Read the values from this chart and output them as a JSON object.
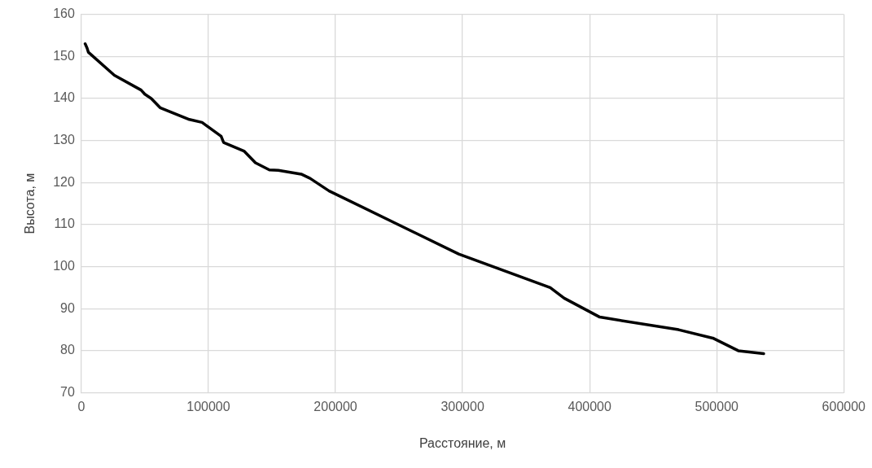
{
  "chart_data": {
    "type": "line",
    "xlabel": "Расстояние, м",
    "ylabel": "Высота, м",
    "x": [
      3000,
      4500,
      5500,
      26000,
      47000,
      50000,
      55000,
      62000,
      85000,
      95000,
      110000,
      112000,
      128000,
      137000,
      148000,
      155000,
      173000,
      180000,
      195000,
      297000,
      369000,
      380000,
      408000,
      470000,
      497000,
      517000,
      537000
    ],
    "series": [
      {
        "color": "#000000",
        "values": [
          153,
          152,
          151,
          145.5,
          142,
          141,
          140,
          137.8,
          135,
          134.3,
          131,
          129.5,
          127.5,
          124.7,
          123,
          122.9,
          122,
          121,
          118,
          103,
          95,
          92.5,
          88,
          85,
          83,
          80,
          79.3
        ]
      }
    ],
    "xlim": [
      0,
      600000
    ],
    "xticks": [
      0,
      100000,
      200000,
      300000,
      400000,
      500000,
      600000
    ],
    "ylim": [
      70,
      160
    ],
    "yticks": [
      70,
      80,
      90,
      100,
      110,
      120,
      130,
      140,
      150,
      160
    ],
    "grid": true,
    "legend": false,
    "marker": "none",
    "line_style": "solid"
  }
}
